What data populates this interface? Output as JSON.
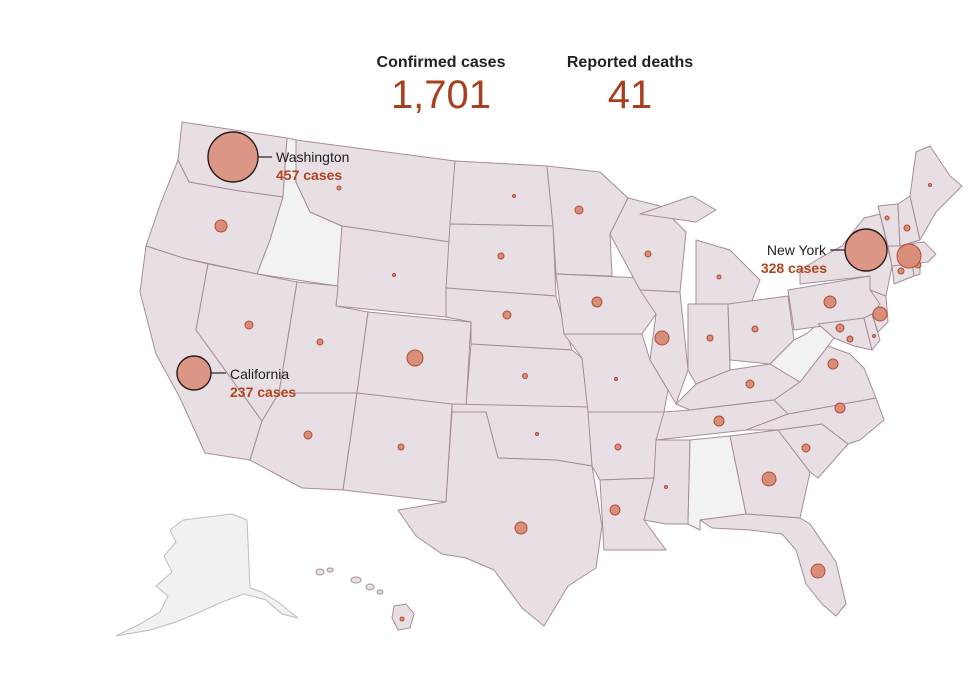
{
  "summary": {
    "cases_label": "Confirmed cases",
    "cases_value": "1,701",
    "deaths_label": "Reported deaths",
    "deaths_value": "41"
  },
  "callouts": {
    "washington": {
      "name": "Washington",
      "count": "457 cases"
    },
    "california": {
      "name": "California",
      "count": "237 cases"
    },
    "new_york": {
      "name": "New York",
      "count": "328 cases"
    }
  },
  "colors": {
    "state_fill": "#e8dfe4",
    "state_no_cases_fill": "#f3f2f2",
    "state_border": "#a58d99",
    "bubble_fill": "#d98e7a",
    "bubble_stroke": "#b14c33",
    "accent_text": "#a8401f"
  },
  "states_without_cases": [
    "Idaho",
    "West Virginia",
    "Alabama",
    "Alaska"
  ]
}
